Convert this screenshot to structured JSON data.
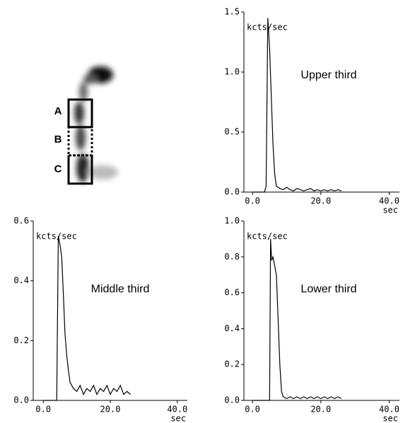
{
  "image_labels": [
    "A",
    "B",
    "C"
  ],
  "chart_data": [
    {
      "type": "line",
      "title": "Upper third",
      "ylabel": "kcts/sec",
      "xlabel": "sec",
      "color": "#000000",
      "xlim": [
        -2.5,
        43
      ],
      "ylim": [
        0,
        1.5
      ],
      "xticks": [
        {
          "value": 0,
          "label": "0.0"
        },
        {
          "value": 20,
          "label": "20.0"
        },
        {
          "value": 40,
          "label": "40.0"
        }
      ],
      "yticks": [
        {
          "value": 0,
          "label": "0.0"
        },
        {
          "value": 0.5,
          "label": "0.5"
        },
        {
          "value": 1,
          "label": "1.0"
        },
        {
          "value": 1.5,
          "label": "1.5"
        }
      ],
      "x": [
        0,
        1,
        2,
        3,
        3.5,
        4,
        4.5,
        5,
        5.5,
        6,
        6.5,
        7,
        8,
        9,
        10,
        11,
        12,
        13,
        14,
        15,
        16,
        17,
        18,
        19,
        20,
        21,
        22,
        23,
        24,
        25,
        26
      ],
      "values": [
        0,
        0,
        0,
        0,
        0,
        0.05,
        1.45,
        1.2,
        0.8,
        0.4,
        0.15,
        0.05,
        0.03,
        0.02,
        0.04,
        0.02,
        0.01,
        0.03,
        0.02,
        0.01,
        0.02,
        0.03,
        0.01,
        0.02,
        0.01,
        0.02,
        0.01,
        0.02,
        0.01,
        0.02,
        0.01
      ]
    },
    {
      "type": "line",
      "title": "Middle third",
      "ylabel": "kcts/sec",
      "xlabel": "sec",
      "color": "#000000",
      "xlim": [
        -3,
        43
      ],
      "ylim": [
        0,
        0.6
      ],
      "xticks": [
        {
          "value": 0,
          "label": "0.0"
        },
        {
          "value": 20,
          "label": "20.0"
        },
        {
          "value": 40,
          "label": "40.0"
        }
      ],
      "yticks": [
        {
          "value": 0,
          "label": "0.0"
        },
        {
          "value": 0.2,
          "label": "0.2"
        },
        {
          "value": 0.4,
          "label": "0.4"
        },
        {
          "value": 0.6,
          "label": "0.6"
        }
      ],
      "x": [
        0,
        1,
        2,
        3,
        4,
        4.5,
        5,
        5.5,
        6,
        6.5,
        7,
        7.5,
        8,
        9,
        10,
        11,
        12,
        13,
        14,
        15,
        16,
        17,
        18,
        19,
        20,
        21,
        22,
        23,
        24,
        25,
        26
      ],
      "values": [
        0,
        0,
        0,
        0,
        0,
        0.55,
        0.52,
        0.48,
        0.35,
        0.22,
        0.15,
        0.1,
        0.06,
        0.04,
        0.03,
        0.05,
        0.02,
        0.04,
        0.03,
        0.05,
        0.02,
        0.04,
        0.03,
        0.05,
        0.02,
        0.04,
        0.03,
        0.05,
        0.02,
        0.03,
        0.02
      ]
    },
    {
      "type": "line",
      "title": "Lower third",
      "ylabel": "kcts/sec",
      "xlabel": "sec",
      "color": "#000000",
      "xlim": [
        -2.5,
        43
      ],
      "ylim": [
        0,
        1
      ],
      "xticks": [
        {
          "value": 0,
          "label": "0.0"
        },
        {
          "value": 20,
          "label": "20.0"
        },
        {
          "value": 40,
          "label": "40.0"
        }
      ],
      "yticks": [
        {
          "value": 0,
          "label": "0.0"
        },
        {
          "value": 0.2,
          "label": "0.2"
        },
        {
          "value": 0.4,
          "label": "0.4"
        },
        {
          "value": 0.6,
          "label": "0.6"
        },
        {
          "value": 0.8,
          "label": "0.8"
        },
        {
          "value": 1,
          "label": "1.0"
        }
      ],
      "x": [
        0,
        1,
        2,
        3,
        4,
        5,
        5.3,
        5.6,
        6,
        6.5,
        7,
        7.5,
        8,
        8.5,
        9,
        10,
        11,
        12,
        13,
        14,
        15,
        16,
        17,
        18,
        19,
        20,
        21,
        22,
        23,
        24,
        25,
        26
      ],
      "values": [
        0,
        0,
        0,
        0,
        0,
        0,
        0.9,
        0.78,
        0.8,
        0.75,
        0.7,
        0.45,
        0.2,
        0.05,
        0.02,
        0.01,
        0.02,
        0.01,
        0.02,
        0.01,
        0.02,
        0.01,
        0.02,
        0.01,
        0.02,
        0.01,
        0.02,
        0.01,
        0.02,
        0.01,
        0.02,
        0.01
      ]
    }
  ]
}
